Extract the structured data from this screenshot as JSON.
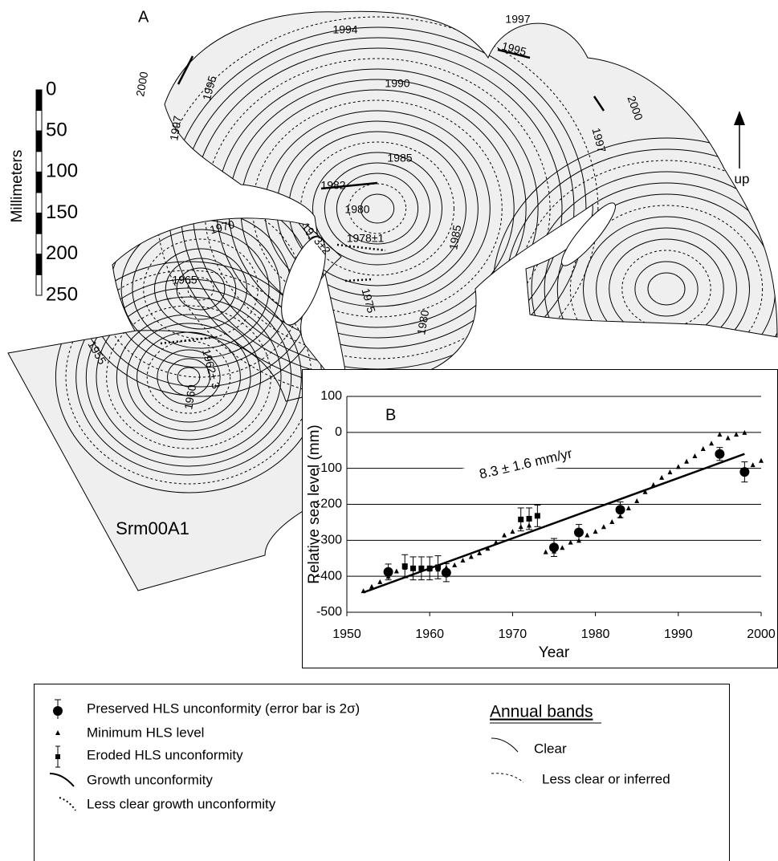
{
  "chart_data": {
    "type": "scatter",
    "panel_label": "B",
    "x_label": "Year",
    "y_label": "Relative sea level (mm)",
    "xlim": [
      1950,
      2000
    ],
    "xticks": [
      1950,
      1960,
      1970,
      1980,
      1990,
      2000
    ],
    "ylim": [
      -500,
      100
    ],
    "yticks": [
      -500,
      -400,
      -300,
      -200,
      -100,
      0,
      100
    ],
    "grid": true,
    "series": [
      {
        "name": "Preserved HLS unconformity (error bar is 2σ)",
        "marker": "circle",
        "color": "#000000",
        "x": [
          1955,
          1962,
          1975,
          1978,
          1983,
          1995,
          1998
        ],
        "values": [
          -388,
          -390,
          -320,
          -278,
          -215,
          -60,
          -110
        ],
        "errors": [
          22,
          25,
          25,
          22,
          22,
          18,
          28
        ]
      },
      {
        "name": "Minimum HLS level",
        "marker": "triangle",
        "color": "#000000",
        "x": [
          1952,
          1953,
          1954,
          1955,
          1956,
          1957,
          1958,
          1959,
          1960,
          1961,
          1962,
          1963,
          1964,
          1965,
          1966,
          1967,
          1968,
          1969,
          1970,
          1971,
          1972,
          1974,
          1975,
          1976,
          1977,
          1978,
          1979,
          1980,
          1981,
          1982,
          1983,
          1984,
          1985,
          1986,
          1987,
          1988,
          1989,
          1990,
          1991,
          1992,
          1993,
          1994,
          1995,
          1996,
          1997,
          1998,
          1999,
          2000
        ],
        "values": [
          -440,
          -428,
          -415,
          -400,
          -385,
          -375,
          -375,
          -378,
          -380,
          -380,
          -375,
          -368,
          -355,
          -345,
          -335,
          -322,
          -305,
          -285,
          -275,
          -262,
          -258,
          -332,
          -330,
          -320,
          -305,
          -300,
          -285,
          -275,
          -262,
          -248,
          -232,
          -210,
          -190,
          -165,
          -145,
          -125,
          -110,
          -95,
          -80,
          -65,
          -45,
          -30,
          -5,
          -15,
          -5,
          0,
          -90,
          -78
        ]
      },
      {
        "name": "Eroded HLS unconformity",
        "marker": "square",
        "color": "#000000",
        "x": [
          1957,
          1958,
          1959,
          1960,
          1961,
          1971,
          1972,
          1973
        ],
        "values": [
          -372,
          -378,
          -378,
          -378,
          -375,
          -242,
          -240,
          -232
        ],
        "errors": [
          32,
          32,
          32,
          32,
          32,
          32,
          30,
          30
        ]
      }
    ],
    "trend": {
      "label": "8.3 ± 1.6 mm/yr",
      "x": [
        1952,
        1998
      ],
      "values": [
        -445,
        -60
      ],
      "color": "#000000"
    }
  },
  "panel_a": {
    "label": "A",
    "specimen": "Srm00A1",
    "direction": "up",
    "years": [
      "2000",
      "1995",
      "1994",
      "1997",
      "1995",
      "1990",
      "1997",
      "2000",
      "1997",
      "1985",
      "1982",
      "1980",
      "1978±1",
      "1973±2",
      "1970",
      "1985",
      "1965",
      "1975",
      "1980",
      "1955",
      "1962± 3",
      "1960"
    ]
  },
  "scale_bar": {
    "title": "Millimeters",
    "ticks": [
      0,
      50,
      100,
      150,
      200,
      250
    ]
  },
  "legend": {
    "growth": "Growth unconformity",
    "growth_unclear": "Less clear growth unconformity",
    "bands_title": "Annual bands",
    "bands_clear": "Clear",
    "bands_unclear": "Less clear or inferred"
  }
}
